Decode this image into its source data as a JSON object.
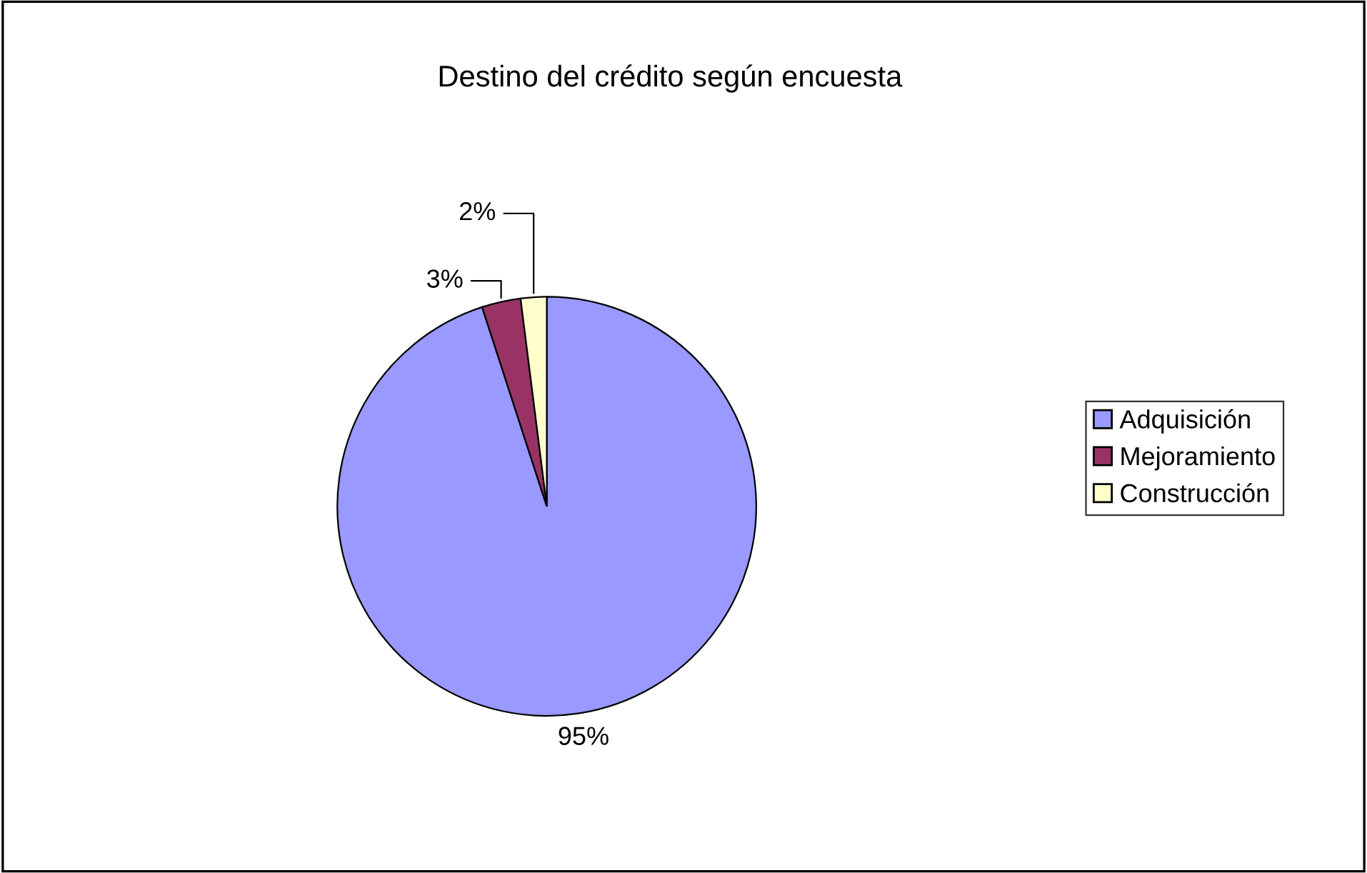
{
  "chart_data": {
    "type": "pie",
    "title": "Destino del crédito según encuesta",
    "categories": [
      "Adquisición",
      "Mejoramiento",
      "Construcción"
    ],
    "values": [
      95,
      3,
      2
    ],
    "colors": [
      "#9999ff",
      "#993366",
      "#ffffcc"
    ],
    "value_labels": [
      "95%",
      "3%",
      "2%"
    ],
    "legend": "right"
  }
}
